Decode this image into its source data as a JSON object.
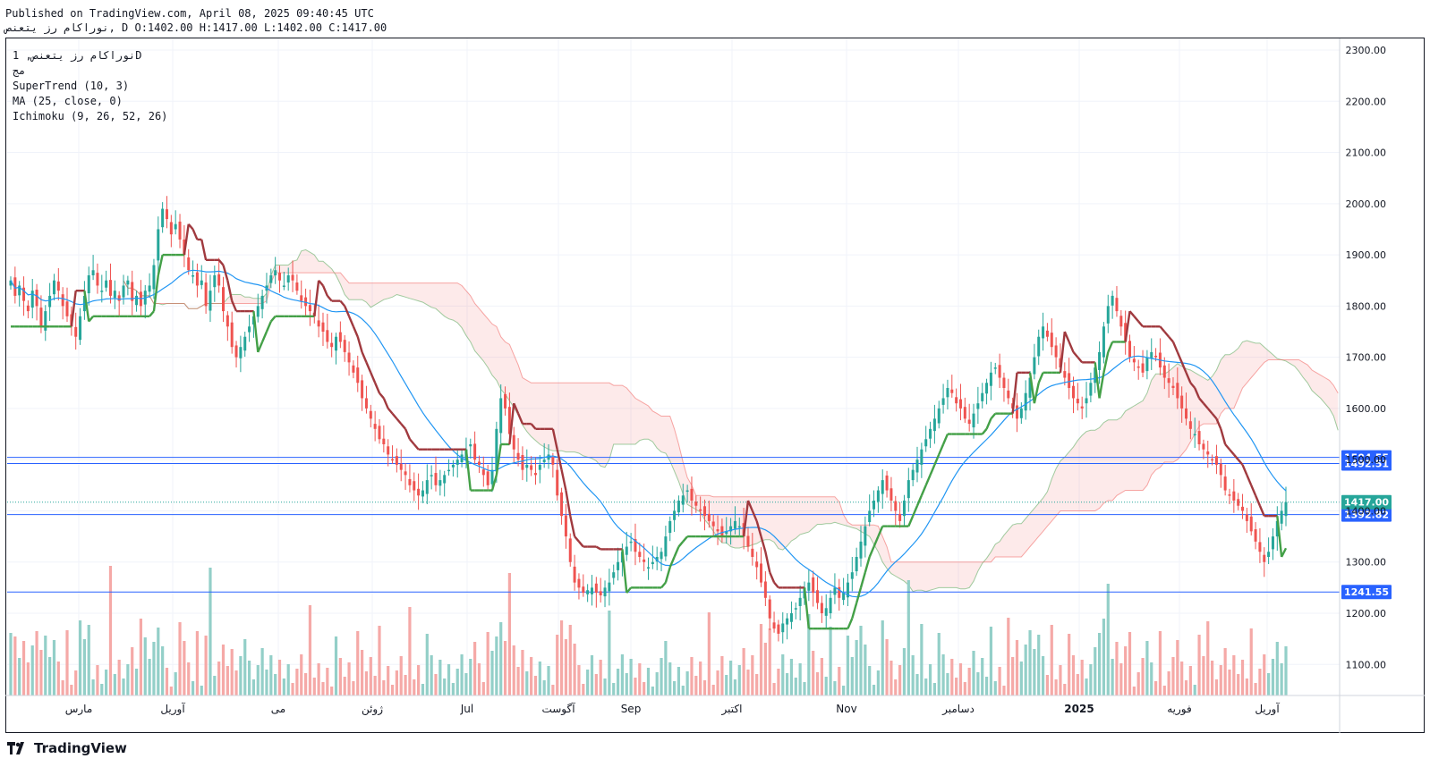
{
  "header": {
    "published": "Published on TradingView.com, April 08, 2025 09:40:45 UTC",
    "ohlc": "نوراکام رز یتعنص, D O:1402.00 H:1417.00 L:1402.00 C:1417.00"
  },
  "legend": {
    "line1": "نوراکام رز یتعنص, 1D",
    "line2": "مج",
    "line3": "SuperTrend (10, 3)",
    "line4": "MA (25, close, 0)",
    "line5": "Ichimoku (9, 26, 52, 26)"
  },
  "brand": {
    "name": "TradingView"
  },
  "colors": {
    "up": "#26a69a",
    "down": "#ef5350",
    "supertrend_up": "#43a047",
    "supertrend_down": "#a0393e",
    "ma": "#2196f3",
    "level": "#2962ff"
  },
  "chart_data": {
    "type": "candlestick",
    "timeframe": "1D",
    "y_axis": {
      "ylim": [
        1040,
        2320
      ],
      "ticks": [
        1100,
        1200,
        1300,
        1400,
        1500,
        1600,
        1700,
        1800,
        1900,
        2000,
        2100,
        2200,
        2300
      ],
      "tick_labels": [
        "1100.00",
        "1200.00",
        "1300.00",
        "1400.00",
        "1500.00",
        "1600.00",
        "1700.00",
        "1800.00",
        "1900.00",
        "2000.00",
        "2100.00",
        "2200.00",
        "2300.00"
      ]
    },
    "x_axis": {
      "labels": [
        "مارس",
        "آوریل",
        "می",
        "ژوئن",
        "Jul",
        "آگوست",
        "Sep",
        "اکتبر",
        "Nov",
        "دسامبر",
        "2025",
        "فوریه",
        "آوریل"
      ]
    },
    "levels": [
      {
        "value": 1504.55,
        "label": "1504.55"
      },
      {
        "value": 1492.51,
        "label": "1492.51"
      },
      {
        "value": 1392.82,
        "label": "1392.82"
      },
      {
        "value": 1241.55,
        "label": "1241.55"
      }
    ],
    "last_price": {
      "value": 1417.0,
      "label": "1417.00"
    },
    "candles_close": [
      1850,
      1820,
      1840,
      1810,
      1790,
      1830,
      1800,
      1760,
      1790,
      1820,
      1850,
      1830,
      1800,
      1780,
      1760,
      1740,
      1780,
      1820,
      1860,
      1870,
      1840,
      1830,
      1850,
      1820,
      1830,
      1810,
      1840,
      1850,
      1810,
      1820,
      1800,
      1830,
      1840,
      1880,
      1950,
      1990,
      1970,
      1940,
      1960,
      1930,
      1900,
      1870,
      1860,
      1840,
      1850,
      1800,
      1830,
      1860,
      1840,
      1790,
      1760,
      1720,
      1700,
      1720,
      1740,
      1760,
      1780,
      1800,
      1820,
      1840,
      1860,
      1870,
      1850,
      1840,
      1860,
      1850,
      1830,
      1810,
      1800,
      1790,
      1780,
      1760,
      1750,
      1730,
      1720,
      1740,
      1730,
      1710,
      1690,
      1670,
      1650,
      1620,
      1600,
      1580,
      1560,
      1540,
      1530,
      1510,
      1500,
      1490,
      1480,
      1470,
      1450,
      1440,
      1430,
      1440,
      1460,
      1470,
      1450,
      1460,
      1470,
      1480,
      1490,
      1500,
      1510,
      1520,
      1530,
      1500,
      1490,
      1470,
      1450,
      1480,
      1560,
      1620,
      1600,
      1550,
      1520,
      1500,
      1480,
      1490,
      1480,
      1470,
      1490,
      1500,
      1510,
      1490,
      1430,
      1390,
      1350,
      1300,
      1260,
      1250,
      1240,
      1245,
      1250,
      1240,
      1235,
      1250,
      1260,
      1280,
      1300,
      1320,
      1330,
      1340,
      1320,
      1310,
      1300,
      1290,
      1300,
      1310,
      1320,
      1350,
      1380,
      1400,
      1420,
      1430,
      1440,
      1420,
      1410,
      1400,
      1390,
      1380,
      1370,
      1360,
      1350,
      1360,
      1370,
      1380,
      1370,
      1350,
      1330,
      1310,
      1290,
      1260,
      1230,
      1190,
      1170,
      1160,
      1180,
      1190,
      1200,
      1210,
      1230,
      1250,
      1260,
      1240,
      1220,
      1200,
      1210,
      1230,
      1250,
      1230,
      1240,
      1260,
      1280,
      1310,
      1340,
      1370,
      1400,
      1420,
      1440,
      1460,
      1440,
      1420,
      1400,
      1380,
      1420,
      1460,
      1480,
      1500,
      1520,
      1540,
      1560,
      1580,
      1600,
      1620,
      1640,
      1630,
      1610,
      1600,
      1580,
      1570,
      1590,
      1610,
      1630,
      1650,
      1670,
      1680,
      1660,
      1640,
      1620,
      1600,
      1580,
      1600,
      1630,
      1660,
      1700,
      1740,
      1760,
      1740,
      1720,
      1700,
      1680,
      1660,
      1640,
      1620,
      1610,
      1600,
      1620,
      1650,
      1680,
      1710,
      1760,
      1800,
      1820,
      1790,
      1760,
      1730,
      1700,
      1690,
      1680,
      1670,
      1700,
      1710,
      1700,
      1680,
      1660,
      1650,
      1640,
      1620,
      1600,
      1580,
      1560,
      1550,
      1530,
      1520,
      1510,
      1500,
      1490,
      1470,
      1440,
      1430,
      1420,
      1410,
      1400,
      1380,
      1360,
      1340,
      1320,
      1300,
      1320,
      1350,
      1380,
      1400,
      1417
    ]
  }
}
